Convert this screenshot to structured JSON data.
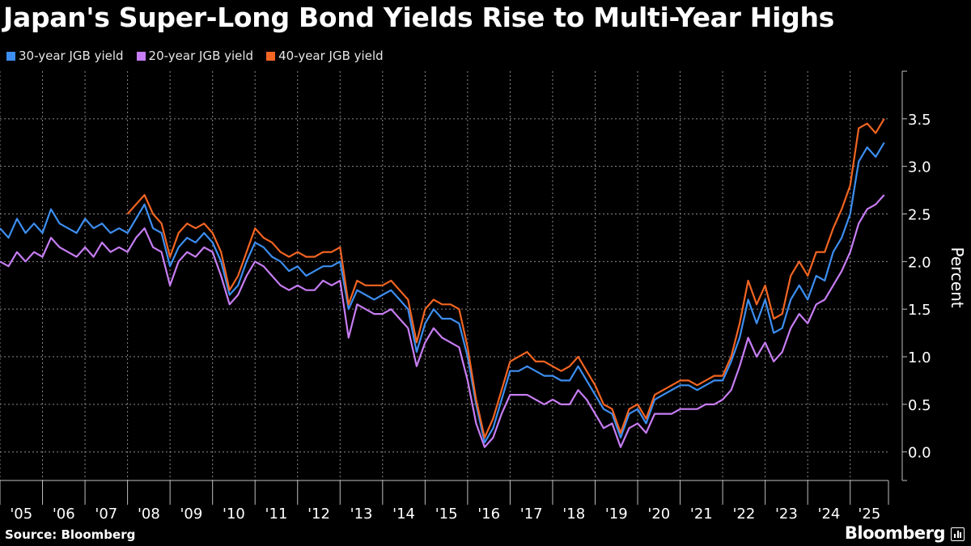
{
  "header": {
    "title": "Japan's Super-Long Bond Yields Rise to Multi-Year Highs"
  },
  "footer": {
    "source": "Source: Bloomberg",
    "brand": "Bloomberg"
  },
  "chart_data": {
    "type": "line",
    "title": "Japan's Super-Long Bond Yields Rise to Multi-Year Highs",
    "xlabel": "",
    "ylabel": "Percent",
    "ylim": [
      -0.3,
      4.0
    ],
    "yticks": [
      0.0,
      0.5,
      1.0,
      1.5,
      2.0,
      2.5,
      3.0,
      3.5
    ],
    "ytick_labels": [
      "0.0",
      "0.5",
      "1.0",
      "1.5",
      "2.0",
      "2.5",
      "3.0",
      "3.5"
    ],
    "xlim": [
      2005.0,
      2025.9
    ],
    "xticks": [
      2005,
      2006,
      2007,
      2008,
      2009,
      2010,
      2011,
      2012,
      2013,
      2014,
      2015,
      2016,
      2017,
      2018,
      2019,
      2020,
      2021,
      2022,
      2023,
      2024,
      2025
    ],
    "xtick_labels": [
      "'05",
      "'06",
      "'07",
      "'08",
      "'09",
      "'10",
      "'11",
      "'12",
      "'13",
      "'14",
      "'15",
      "'16",
      "'17",
      "'18",
      "'19",
      "'20",
      "'21",
      "'22",
      "'23",
      "'24",
      "'25"
    ],
    "grid": true,
    "legend_position": "top-left",
    "series": [
      {
        "name": "30-year JGB yield",
        "color": "#3d8ef0",
        "x": [
          2005.0,
          2005.2,
          2005.4,
          2005.6,
          2005.8,
          2006.0,
          2006.2,
          2006.4,
          2006.6,
          2006.8,
          2007.0,
          2007.2,
          2007.4,
          2007.6,
          2007.8,
          2008.0,
          2008.2,
          2008.4,
          2008.6,
          2008.8,
          2009.0,
          2009.2,
          2009.4,
          2009.6,
          2009.8,
          2010.0,
          2010.2,
          2010.4,
          2010.6,
          2010.8,
          2011.0,
          2011.2,
          2011.4,
          2011.6,
          2011.8,
          2012.0,
          2012.2,
          2012.4,
          2012.6,
          2012.8,
          2013.0,
          2013.2,
          2013.4,
          2013.6,
          2013.8,
          2014.0,
          2014.2,
          2014.4,
          2014.6,
          2014.8,
          2015.0,
          2015.2,
          2015.4,
          2015.6,
          2015.8,
          2016.0,
          2016.2,
          2016.4,
          2016.6,
          2016.8,
          2017.0,
          2017.2,
          2017.4,
          2017.6,
          2017.8,
          2018.0,
          2018.2,
          2018.4,
          2018.6,
          2018.8,
          2019.0,
          2019.2,
          2019.4,
          2019.6,
          2019.8,
          2020.0,
          2020.2,
          2020.4,
          2020.6,
          2020.8,
          2021.0,
          2021.2,
          2021.4,
          2021.6,
          2021.8,
          2022.0,
          2022.2,
          2022.4,
          2022.6,
          2022.8,
          2023.0,
          2023.2,
          2023.4,
          2023.6,
          2023.8,
          2024.0,
          2024.2,
          2024.4,
          2024.6,
          2024.8,
          2025.0,
          2025.2,
          2025.4,
          2025.6,
          2025.8
        ],
        "values": [
          2.35,
          2.25,
          2.45,
          2.3,
          2.4,
          2.3,
          2.55,
          2.4,
          2.35,
          2.3,
          2.45,
          2.35,
          2.4,
          2.3,
          2.35,
          2.3,
          2.45,
          2.6,
          2.35,
          2.3,
          1.95,
          2.15,
          2.25,
          2.2,
          2.3,
          2.2,
          2.0,
          1.65,
          1.75,
          2.0,
          2.2,
          2.15,
          2.05,
          2.0,
          1.9,
          1.95,
          1.85,
          1.9,
          1.95,
          1.95,
          2.0,
          1.5,
          1.7,
          1.65,
          1.6,
          1.65,
          1.7,
          1.6,
          1.5,
          1.05,
          1.35,
          1.5,
          1.4,
          1.4,
          1.35,
          1.0,
          0.5,
          0.1,
          0.25,
          0.55,
          0.85,
          0.85,
          0.9,
          0.85,
          0.8,
          0.8,
          0.75,
          0.75,
          0.9,
          0.75,
          0.6,
          0.45,
          0.4,
          0.15,
          0.4,
          0.45,
          0.3,
          0.55,
          0.6,
          0.65,
          0.7,
          0.7,
          0.65,
          0.7,
          0.75,
          0.75,
          0.95,
          1.2,
          1.6,
          1.35,
          1.6,
          1.25,
          1.3,
          1.6,
          1.75,
          1.6,
          1.85,
          1.8,
          2.1,
          2.25,
          2.5,
          3.05,
          3.2,
          3.1,
          3.25
        ]
      },
      {
        "name": "20-year JGB yield",
        "color": "#c77df3",
        "x": [
          2005.0,
          2005.2,
          2005.4,
          2005.6,
          2005.8,
          2006.0,
          2006.2,
          2006.4,
          2006.6,
          2006.8,
          2007.0,
          2007.2,
          2007.4,
          2007.6,
          2007.8,
          2008.0,
          2008.2,
          2008.4,
          2008.6,
          2008.8,
          2009.0,
          2009.2,
          2009.4,
          2009.6,
          2009.8,
          2010.0,
          2010.2,
          2010.4,
          2010.6,
          2010.8,
          2011.0,
          2011.2,
          2011.4,
          2011.6,
          2011.8,
          2012.0,
          2012.2,
          2012.4,
          2012.6,
          2012.8,
          2013.0,
          2013.2,
          2013.4,
          2013.6,
          2013.8,
          2014.0,
          2014.2,
          2014.4,
          2014.6,
          2014.8,
          2015.0,
          2015.2,
          2015.4,
          2015.6,
          2015.8,
          2016.0,
          2016.2,
          2016.4,
          2016.6,
          2016.8,
          2017.0,
          2017.2,
          2017.4,
          2017.6,
          2017.8,
          2018.0,
          2018.2,
          2018.4,
          2018.6,
          2018.8,
          2019.0,
          2019.2,
          2019.4,
          2019.6,
          2019.8,
          2020.0,
          2020.2,
          2020.4,
          2020.6,
          2020.8,
          2021.0,
          2021.2,
          2021.4,
          2021.6,
          2021.8,
          2022.0,
          2022.2,
          2022.4,
          2022.6,
          2022.8,
          2023.0,
          2023.2,
          2023.4,
          2023.6,
          2023.8,
          2024.0,
          2024.2,
          2024.4,
          2024.6,
          2024.8,
          2025.0,
          2025.2,
          2025.4,
          2025.6,
          2025.8
        ],
        "values": [
          2.0,
          1.95,
          2.1,
          2.0,
          2.1,
          2.05,
          2.25,
          2.15,
          2.1,
          2.05,
          2.15,
          2.05,
          2.2,
          2.1,
          2.15,
          2.1,
          2.25,
          2.35,
          2.15,
          2.1,
          1.75,
          2.0,
          2.1,
          2.05,
          2.15,
          2.1,
          1.85,
          1.55,
          1.65,
          1.85,
          2.0,
          1.95,
          1.85,
          1.75,
          1.7,
          1.75,
          1.7,
          1.7,
          1.8,
          1.75,
          1.8,
          1.2,
          1.55,
          1.5,
          1.45,
          1.45,
          1.5,
          1.4,
          1.3,
          0.9,
          1.15,
          1.3,
          1.2,
          1.15,
          1.1,
          0.75,
          0.3,
          0.05,
          0.15,
          0.4,
          0.6,
          0.6,
          0.6,
          0.55,
          0.5,
          0.55,
          0.5,
          0.5,
          0.65,
          0.55,
          0.4,
          0.25,
          0.3,
          0.05,
          0.25,
          0.3,
          0.2,
          0.4,
          0.4,
          0.4,
          0.45,
          0.45,
          0.45,
          0.5,
          0.5,
          0.55,
          0.65,
          0.9,
          1.2,
          1.0,
          1.15,
          0.95,
          1.05,
          1.3,
          1.45,
          1.35,
          1.55,
          1.6,
          1.75,
          1.9,
          2.1,
          2.4,
          2.55,
          2.6,
          2.7
        ]
      },
      {
        "name": "40-year JGB yield",
        "color": "#f26522",
        "x": [
          2008.0,
          2008.2,
          2008.4,
          2008.6,
          2008.8,
          2009.0,
          2009.2,
          2009.4,
          2009.6,
          2009.8,
          2010.0,
          2010.2,
          2010.4,
          2010.6,
          2010.8,
          2011.0,
          2011.2,
          2011.4,
          2011.6,
          2011.8,
          2012.0,
          2012.2,
          2012.4,
          2012.6,
          2012.8,
          2013.0,
          2013.2,
          2013.4,
          2013.6,
          2013.8,
          2014.0,
          2014.2,
          2014.4,
          2014.6,
          2014.8,
          2015.0,
          2015.2,
          2015.4,
          2015.6,
          2015.8,
          2016.0,
          2016.2,
          2016.4,
          2016.6,
          2016.8,
          2017.0,
          2017.2,
          2017.4,
          2017.6,
          2017.8,
          2018.0,
          2018.2,
          2018.4,
          2018.6,
          2018.8,
          2019.0,
          2019.2,
          2019.4,
          2019.6,
          2019.8,
          2020.0,
          2020.2,
          2020.4,
          2020.6,
          2020.8,
          2021.0,
          2021.2,
          2021.4,
          2021.6,
          2021.8,
          2022.0,
          2022.2,
          2022.4,
          2022.6,
          2022.8,
          2023.0,
          2023.2,
          2023.4,
          2023.6,
          2023.8,
          2024.0,
          2024.2,
          2024.4,
          2024.6,
          2024.8,
          2025.0,
          2025.2,
          2025.4,
          2025.6,
          2025.8
        ],
        "values": [
          2.5,
          2.6,
          2.7,
          2.5,
          2.4,
          2.05,
          2.3,
          2.4,
          2.35,
          2.4,
          2.3,
          2.1,
          1.7,
          1.85,
          2.1,
          2.35,
          2.25,
          2.2,
          2.1,
          2.05,
          2.1,
          2.05,
          2.05,
          2.1,
          2.1,
          2.15,
          1.55,
          1.8,
          1.75,
          1.75,
          1.75,
          1.8,
          1.7,
          1.6,
          1.15,
          1.5,
          1.6,
          1.55,
          1.55,
          1.5,
          1.1,
          0.55,
          0.15,
          0.35,
          0.65,
          0.95,
          1.0,
          1.05,
          0.95,
          0.95,
          0.9,
          0.85,
          0.9,
          1.0,
          0.85,
          0.7,
          0.5,
          0.45,
          0.2,
          0.45,
          0.5,
          0.35,
          0.6,
          0.65,
          0.7,
          0.75,
          0.75,
          0.7,
          0.75,
          0.8,
          0.8,
          1.0,
          1.35,
          1.8,
          1.55,
          1.75,
          1.4,
          1.45,
          1.85,
          2.0,
          1.85,
          2.1,
          2.1,
          2.35,
          2.55,
          2.8,
          3.4,
          3.45,
          3.35,
          3.5
        ]
      }
    ]
  }
}
